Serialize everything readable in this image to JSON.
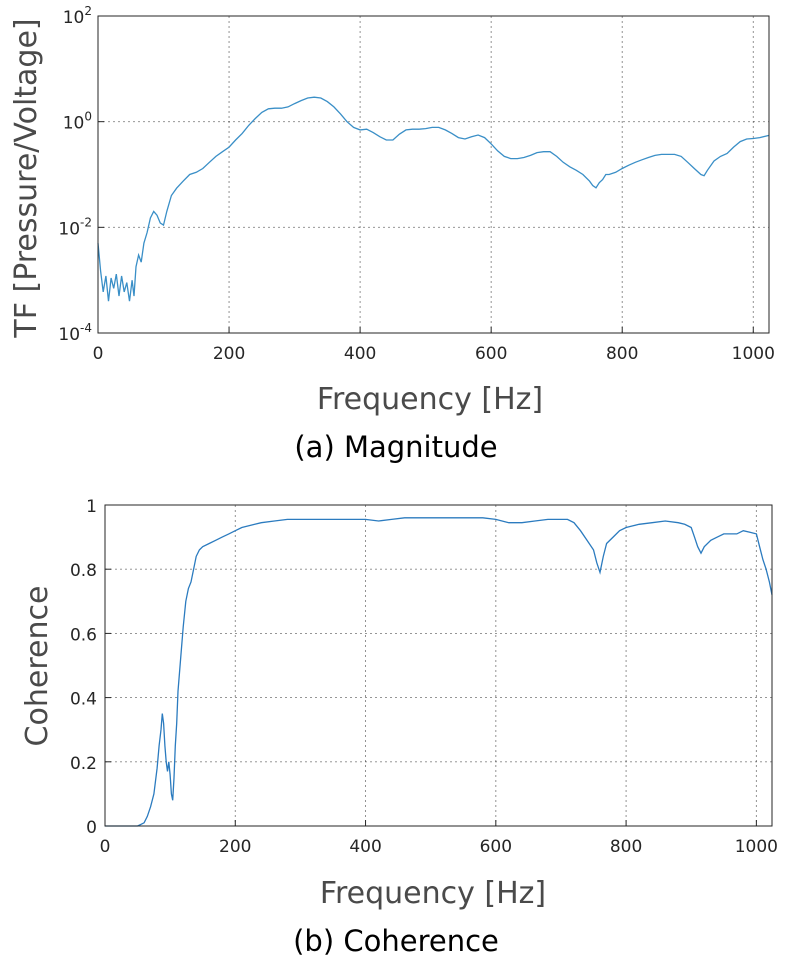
{
  "chart_data": [
    {
      "type": "line",
      "caption": "(a)  Magnitude",
      "xlabel": "Frequency [Hz]",
      "ylabel": "TF [Pressure/Voltage]",
      "xlim": [
        0,
        1024
      ],
      "ylim": [
        0.0001,
        100
      ],
      "yscale": "log",
      "grid": true,
      "color": "#3a8fc7",
      "x_ticks": [
        {
          "value": 0,
          "label": "0"
        },
        {
          "value": 200,
          "label": "200"
        },
        {
          "value": 400,
          "label": "400"
        },
        {
          "value": 600,
          "label": "600"
        },
        {
          "value": 800,
          "label": "800"
        },
        {
          "value": 1000,
          "label": "1000"
        }
      ],
      "y_ticks": [
        {
          "value": 0.0001,
          "base": "10",
          "exp": "-4"
        },
        {
          "value": 0.01,
          "base": "10",
          "exp": "-2"
        },
        {
          "value": 1,
          "base": "10",
          "exp": "0"
        },
        {
          "value": 100,
          "base": "10",
          "exp": "2"
        }
      ],
      "points": [
        [
          0,
          0.005
        ],
        [
          4,
          0.0015
        ],
        [
          8,
          0.0006
        ],
        [
          12,
          0.0012
        ],
        [
          16,
          0.0004
        ],
        [
          20,
          0.0011
        ],
        [
          24,
          0.0007
        ],
        [
          28,
          0.0013
        ],
        [
          32,
          0.0005
        ],
        [
          36,
          0.0012
        ],
        [
          40,
          0.0006
        ],
        [
          44,
          0.0009
        ],
        [
          48,
          0.0004
        ],
        [
          52,
          0.001
        ],
        [
          55,
          0.0005
        ],
        [
          58,
          0.0018
        ],
        [
          62,
          0.003
        ],
        [
          66,
          0.0022
        ],
        [
          70,
          0.005
        ],
        [
          75,
          0.008
        ],
        [
          80,
          0.015
        ],
        [
          85,
          0.02
        ],
        [
          90,
          0.017
        ],
        [
          95,
          0.012
        ],
        [
          100,
          0.011
        ],
        [
          105,
          0.02
        ],
        [
          112,
          0.04
        ],
        [
          120,
          0.055
        ],
        [
          130,
          0.075
        ],
        [
          140,
          0.1
        ],
        [
          150,
          0.11
        ],
        [
          160,
          0.13
        ],
        [
          170,
          0.17
        ],
        [
          180,
          0.22
        ],
        [
          190,
          0.27
        ],
        [
          200,
          0.33
        ],
        [
          210,
          0.45
        ],
        [
          220,
          0.6
        ],
        [
          230,
          0.85
        ],
        [
          240,
          1.15
        ],
        [
          250,
          1.5
        ],
        [
          260,
          1.75
        ],
        [
          270,
          1.8
        ],
        [
          280,
          1.8
        ],
        [
          290,
          1.9
        ],
        [
          300,
          2.2
        ],
        [
          310,
          2.5
        ],
        [
          320,
          2.8
        ],
        [
          330,
          2.9
        ],
        [
          340,
          2.8
        ],
        [
          350,
          2.4
        ],
        [
          360,
          1.9
        ],
        [
          370,
          1.4
        ],
        [
          380,
          1.0
        ],
        [
          390,
          0.78
        ],
        [
          400,
          0.7
        ],
        [
          410,
          0.72
        ],
        [
          420,
          0.62
        ],
        [
          430,
          0.52
        ],
        [
          440,
          0.45
        ],
        [
          450,
          0.45
        ],
        [
          460,
          0.58
        ],
        [
          470,
          0.7
        ],
        [
          480,
          0.72
        ],
        [
          490,
          0.72
        ],
        [
          500,
          0.74
        ],
        [
          510,
          0.78
        ],
        [
          520,
          0.78
        ],
        [
          530,
          0.7
        ],
        [
          540,
          0.6
        ],
        [
          550,
          0.5
        ],
        [
          560,
          0.47
        ],
        [
          570,
          0.52
        ],
        [
          580,
          0.56
        ],
        [
          590,
          0.5
        ],
        [
          600,
          0.38
        ],
        [
          610,
          0.28
        ],
        [
          620,
          0.22
        ],
        [
          630,
          0.2
        ],
        [
          640,
          0.2
        ],
        [
          650,
          0.21
        ],
        [
          660,
          0.23
        ],
        [
          670,
          0.26
        ],
        [
          680,
          0.27
        ],
        [
          690,
          0.27
        ],
        [
          700,
          0.22
        ],
        [
          710,
          0.17
        ],
        [
          720,
          0.14
        ],
        [
          730,
          0.12
        ],
        [
          740,
          0.1
        ],
        [
          750,
          0.075
        ],
        [
          755,
          0.062
        ],
        [
          760,
          0.056
        ],
        [
          765,
          0.07
        ],
        [
          770,
          0.08
        ],
        [
          775,
          0.1
        ],
        [
          780,
          0.1
        ],
        [
          790,
          0.11
        ],
        [
          800,
          0.13
        ],
        [
          810,
          0.15
        ],
        [
          820,
          0.17
        ],
        [
          830,
          0.19
        ],
        [
          840,
          0.21
        ],
        [
          850,
          0.23
        ],
        [
          860,
          0.24
        ],
        [
          870,
          0.24
        ],
        [
          880,
          0.24
        ],
        [
          890,
          0.22
        ],
        [
          900,
          0.17
        ],
        [
          910,
          0.13
        ],
        [
          920,
          0.1
        ],
        [
          925,
          0.095
        ],
        [
          930,
          0.12
        ],
        [
          940,
          0.18
        ],
        [
          950,
          0.22
        ],
        [
          960,
          0.25
        ],
        [
          970,
          0.33
        ],
        [
          980,
          0.42
        ],
        [
          990,
          0.47
        ],
        [
          1000,
          0.48
        ],
        [
          1010,
          0.5
        ],
        [
          1024,
          0.55
        ]
      ]
    },
    {
      "type": "line",
      "caption": "(b)  Coherence",
      "xlabel": "Frequency [Hz]",
      "ylabel": "Coherence",
      "xlim": [
        0,
        1024
      ],
      "ylim": [
        0,
        1
      ],
      "yscale": "linear",
      "grid": true,
      "color": "#2b7bbf",
      "x_ticks": [
        {
          "value": 0,
          "label": "0"
        },
        {
          "value": 200,
          "label": "200"
        },
        {
          "value": 400,
          "label": "400"
        },
        {
          "value": 600,
          "label": "600"
        },
        {
          "value": 800,
          "label": "800"
        },
        {
          "value": 1000,
          "label": "1000"
        }
      ],
      "y_ticks": [
        {
          "value": 0,
          "label": "0"
        },
        {
          "value": 0.2,
          "label": "0.2"
        },
        {
          "value": 0.4,
          "label": "0.4"
        },
        {
          "value": 0.6,
          "label": "0.6"
        },
        {
          "value": 0.8,
          "label": "0.8"
        },
        {
          "value": 1,
          "label": "1"
        }
      ],
      "points": [
        [
          0,
          0.0
        ],
        [
          10,
          0.0
        ],
        [
          20,
          0.0
        ],
        [
          30,
          0.0
        ],
        [
          40,
          0.0
        ],
        [
          50,
          0.0
        ],
        [
          55,
          0.005
        ],
        [
          60,
          0.01
        ],
        [
          65,
          0.03
        ],
        [
          70,
          0.06
        ],
        [
          75,
          0.1
        ],
        [
          80,
          0.18
        ],
        [
          83,
          0.25
        ],
        [
          86,
          0.3
        ],
        [
          88,
          0.35
        ],
        [
          90,
          0.32
        ],
        [
          92,
          0.25
        ],
        [
          94,
          0.2
        ],
        [
          96,
          0.17
        ],
        [
          98,
          0.2
        ],
        [
          100,
          0.16
        ],
        [
          102,
          0.1
        ],
        [
          104,
          0.08
        ],
        [
          106,
          0.15
        ],
        [
          108,
          0.25
        ],
        [
          110,
          0.32
        ],
        [
          112,
          0.42
        ],
        [
          116,
          0.52
        ],
        [
          120,
          0.62
        ],
        [
          124,
          0.7
        ],
        [
          128,
          0.74
        ],
        [
          132,
          0.76
        ],
        [
          136,
          0.8
        ],
        [
          140,
          0.84
        ],
        [
          145,
          0.86
        ],
        [
          150,
          0.87
        ],
        [
          160,
          0.88
        ],
        [
          170,
          0.89
        ],
        [
          180,
          0.9
        ],
        [
          190,
          0.91
        ],
        [
          200,
          0.92
        ],
        [
          210,
          0.93
        ],
        [
          220,
          0.935
        ],
        [
          230,
          0.94
        ],
        [
          240,
          0.945
        ],
        [
          260,
          0.95
        ],
        [
          280,
          0.955
        ],
        [
          300,
          0.955
        ],
        [
          320,
          0.955
        ],
        [
          340,
          0.955
        ],
        [
          360,
          0.955
        ],
        [
          380,
          0.955
        ],
        [
          400,
          0.955
        ],
        [
          420,
          0.95
        ],
        [
          440,
          0.955
        ],
        [
          460,
          0.96
        ],
        [
          480,
          0.96
        ],
        [
          500,
          0.96
        ],
        [
          520,
          0.96
        ],
        [
          540,
          0.96
        ],
        [
          560,
          0.96
        ],
        [
          580,
          0.96
        ],
        [
          600,
          0.955
        ],
        [
          620,
          0.945
        ],
        [
          640,
          0.945
        ],
        [
          660,
          0.95
        ],
        [
          680,
          0.955
        ],
        [
          700,
          0.955
        ],
        [
          710,
          0.955
        ],
        [
          720,
          0.945
        ],
        [
          730,
          0.92
        ],
        [
          740,
          0.89
        ],
        [
          750,
          0.86
        ],
        [
          755,
          0.82
        ],
        [
          760,
          0.79
        ],
        [
          765,
          0.84
        ],
        [
          770,
          0.88
        ],
        [
          780,
          0.9
        ],
        [
          790,
          0.92
        ],
        [
          800,
          0.93
        ],
        [
          810,
          0.935
        ],
        [
          820,
          0.94
        ],
        [
          840,
          0.945
        ],
        [
          860,
          0.95
        ],
        [
          880,
          0.945
        ],
        [
          890,
          0.94
        ],
        [
          900,
          0.93
        ],
        [
          905,
          0.9
        ],
        [
          910,
          0.87
        ],
        [
          915,
          0.85
        ],
        [
          920,
          0.87
        ],
        [
          930,
          0.89
        ],
        [
          940,
          0.9
        ],
        [
          950,
          0.91
        ],
        [
          960,
          0.91
        ],
        [
          970,
          0.91
        ],
        [
          980,
          0.92
        ],
        [
          990,
          0.915
        ],
        [
          1000,
          0.91
        ],
        [
          1005,
          0.87
        ],
        [
          1010,
          0.83
        ],
        [
          1015,
          0.8
        ],
        [
          1020,
          0.76
        ],
        [
          1024,
          0.72
        ]
      ]
    }
  ]
}
